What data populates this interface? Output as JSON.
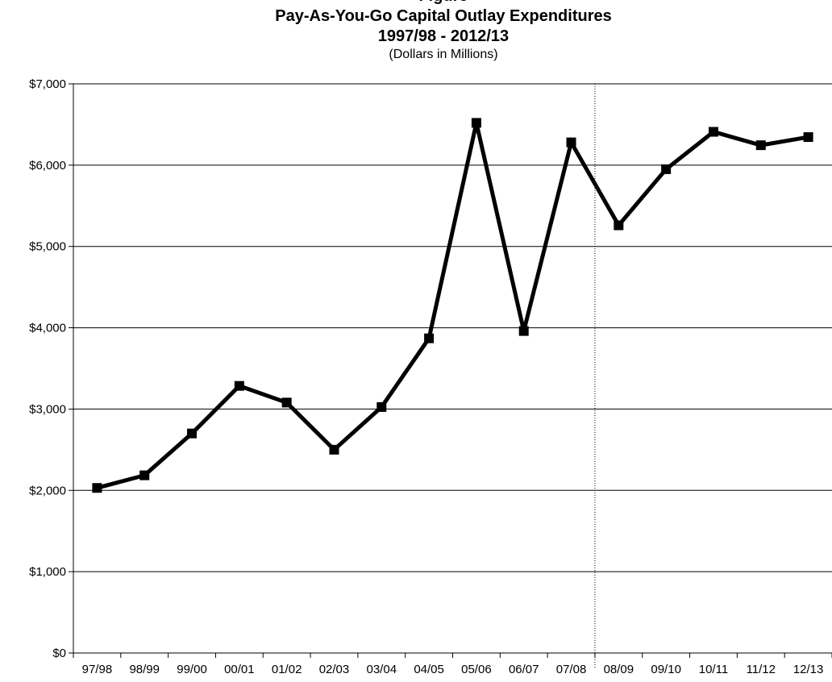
{
  "chart_data": {
    "type": "line",
    "title_clipped": "Figure",
    "title": "Pay-As-You-Go Capital Outlay Expenditures",
    "subtitle": "1997/98 - 2012/13",
    "unit_note": "(Dollars in Millions)",
    "categories": [
      "97/98",
      "98/99",
      "99/00",
      "00/01",
      "01/02",
      "02/03",
      "03/04",
      "04/05",
      "05/06",
      "06/07",
      "07/08",
      "08/09",
      "09/10",
      "10/11",
      "11/12",
      "12/13"
    ],
    "series": [
      {
        "values": [
          2030,
          2185,
          2700,
          3285,
          3080,
          2500,
          3025,
          3870,
          6520,
          3960,
          6280,
          5260,
          5950,
          6410,
          6245,
          6345
        ]
      }
    ],
    "ylim": [
      0,
      7000
    ],
    "y_ticks": [
      0,
      1000,
      2000,
      3000,
      4000,
      5000,
      6000,
      7000
    ],
    "y_tick_labels": [
      "$0",
      "$1,000",
      "$2,000",
      "$3,000",
      "$4,000",
      "$5,000",
      "$6,000",
      "$7,000"
    ],
    "grid": "horizontal",
    "divider_between": [
      "07/08",
      "08/09"
    ],
    "legend": "none",
    "colors": {
      "line": "#000000",
      "grid": "#000000"
    }
  }
}
